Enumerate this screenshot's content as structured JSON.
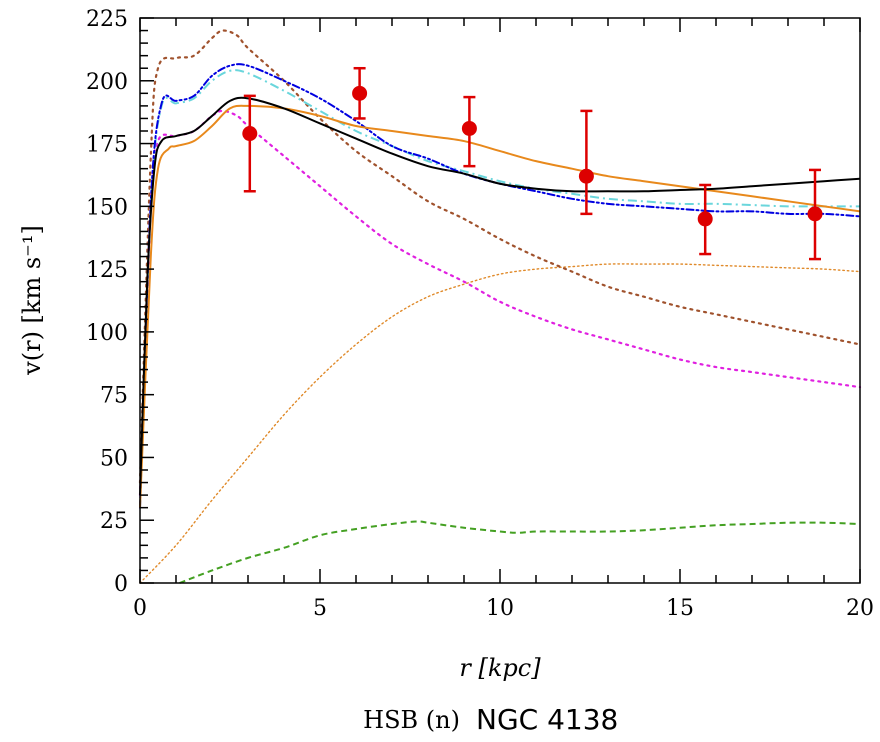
{
  "chart_data": {
    "type": "line",
    "title": "",
    "xlabel": "r [kpc]",
    "ylabel": "v(r) [km s⁻¹]",
    "caption_prefix": "HSB (n)",
    "caption_name": "NGC 4138",
    "xlim": [
      0,
      20
    ],
    "ylim": [
      0,
      225
    ],
    "xticks": [
      0,
      5,
      10,
      15,
      20
    ],
    "yticks": [
      0,
      25,
      50,
      75,
      100,
      125,
      150,
      175,
      200,
      225
    ],
    "grid": false,
    "observations": {
      "color": "#dd0000",
      "points": [
        {
          "r": 3.05,
          "v": 179,
          "lo": 156,
          "hi": 194
        },
        {
          "r": 6.1,
          "v": 195,
          "lo": 185,
          "hi": 205
        },
        {
          "r": 9.15,
          "v": 181,
          "lo": 166,
          "hi": 193.5
        },
        {
          "r": 12.4,
          "v": 162,
          "lo": 147,
          "hi": 188
        },
        {
          "r": 15.7,
          "v": 145,
          "lo": 131,
          "hi": 158.5
        },
        {
          "r": 18.75,
          "v": 147,
          "lo": 129,
          "hi": 164.5
        }
      ]
    },
    "series": [
      {
        "color": "#e08a2a",
        "style": "thin-dotted",
        "points": [
          [
            0,
            0
          ],
          [
            1,
            15
          ],
          [
            2,
            33
          ],
          [
            3,
            50
          ],
          [
            4,
            67
          ],
          [
            5,
            82
          ],
          [
            6,
            95
          ],
          [
            7,
            106
          ],
          [
            8,
            114
          ],
          [
            9,
            119
          ],
          [
            10,
            123
          ],
          [
            11,
            125
          ],
          [
            12,
            126
          ],
          [
            13,
            127
          ],
          [
            14,
            127
          ],
          [
            15,
            127
          ],
          [
            16,
            126.5
          ],
          [
            17,
            126
          ],
          [
            18,
            125.5
          ],
          [
            19,
            125
          ],
          [
            20,
            124
          ]
        ]
      },
      {
        "color": "#44a022",
        "style": "dashed",
        "points": [
          [
            1.1,
            0
          ],
          [
            2,
            5
          ],
          [
            3,
            10
          ],
          [
            4,
            14
          ],
          [
            5,
            19
          ],
          [
            6,
            21.5
          ],
          [
            7,
            23.5
          ],
          [
            7.7,
            24.5
          ],
          [
            8,
            24
          ],
          [
            9,
            22
          ],
          [
            10,
            20.5
          ],
          [
            10.5,
            20
          ],
          [
            11,
            20.5
          ],
          [
            12,
            20.5
          ],
          [
            13,
            20.5
          ],
          [
            14,
            21
          ],
          [
            15,
            22
          ],
          [
            16,
            23
          ],
          [
            17,
            23.5
          ],
          [
            18,
            24
          ],
          [
            19,
            24
          ],
          [
            20,
            23.5
          ]
        ]
      },
      {
        "color": "#a0522d",
        "style": "dotted",
        "points": [
          [
            0,
            40
          ],
          [
            0.3,
            170
          ],
          [
            0.5,
            205
          ],
          [
            1,
            209
          ],
          [
            1.5,
            210
          ],
          [
            2,
            217
          ],
          [
            2.3,
            220
          ],
          [
            2.7,
            218
          ],
          [
            3,
            213
          ],
          [
            4,
            200
          ],
          [
            5,
            185
          ],
          [
            6,
            172
          ],
          [
            7,
            162
          ],
          [
            8,
            152
          ],
          [
            9,
            145
          ],
          [
            10,
            137
          ],
          [
            11,
            130
          ],
          [
            12,
            124
          ],
          [
            13,
            118
          ],
          [
            14,
            114
          ],
          [
            15,
            110
          ],
          [
            16,
            107
          ],
          [
            17,
            104
          ],
          [
            18,
            101
          ],
          [
            19,
            98
          ],
          [
            20,
            95
          ]
        ]
      },
      {
        "color": "#e020e0",
        "style": "dotted",
        "points": [
          [
            0,
            35
          ],
          [
            0.3,
            150
          ],
          [
            0.5,
            176
          ],
          [
            1,
            178
          ],
          [
            1.5,
            180
          ],
          [
            2,
            186
          ],
          [
            2.3,
            188
          ],
          [
            2.7,
            186
          ],
          [
            3,
            182
          ],
          [
            4,
            170
          ],
          [
            5,
            158
          ],
          [
            6,
            146
          ],
          [
            7,
            135
          ],
          [
            8,
            127
          ],
          [
            9,
            120
          ],
          [
            10,
            112
          ],
          [
            11,
            106
          ],
          [
            12,
            101
          ],
          [
            13,
            97
          ],
          [
            14,
            93
          ],
          [
            15,
            89
          ],
          [
            16,
            86
          ],
          [
            17,
            84
          ],
          [
            18,
            82
          ],
          [
            19,
            80
          ],
          [
            20,
            78
          ]
        ]
      },
      {
        "color": "#6ad6dc",
        "style": "dash-dot",
        "points": [
          [
            0,
            30
          ],
          [
            0.3,
            150
          ],
          [
            0.6,
            190
          ],
          [
            1,
            191
          ],
          [
            1.5,
            193
          ],
          [
            2,
            200
          ],
          [
            2.5,
            204
          ],
          [
            3,
            203
          ],
          [
            4,
            196
          ],
          [
            5,
            188
          ],
          [
            6,
            180
          ],
          [
            7,
            174
          ],
          [
            8,
            168
          ],
          [
            9,
            164
          ],
          [
            10,
            160
          ],
          [
            11,
            157
          ],
          [
            12,
            155
          ],
          [
            13,
            153
          ],
          [
            14,
            152
          ],
          [
            15,
            151
          ],
          [
            16,
            151
          ],
          [
            17,
            150.5
          ],
          [
            18,
            150
          ],
          [
            19,
            150
          ],
          [
            20,
            150
          ]
        ]
      },
      {
        "color": "#0000e0",
        "style": "dash-dot-dot",
        "points": [
          [
            0,
            30
          ],
          [
            0.3,
            152
          ],
          [
            0.6,
            191
          ],
          [
            1,
            192
          ],
          [
            1.5,
            194
          ],
          [
            2,
            202
          ],
          [
            2.5,
            206
          ],
          [
            3,
            206
          ],
          [
            4,
            200
          ],
          [
            5,
            193
          ],
          [
            6,
            184
          ],
          [
            7,
            174
          ],
          [
            8,
            169
          ],
          [
            9,
            163
          ],
          [
            10,
            159
          ],
          [
            11,
            156
          ],
          [
            12,
            153
          ],
          [
            13,
            151
          ],
          [
            14,
            150
          ],
          [
            15,
            149
          ],
          [
            16,
            148
          ],
          [
            17,
            148
          ],
          [
            18,
            147
          ],
          [
            19,
            147
          ],
          [
            20,
            146
          ]
        ]
      },
      {
        "color": "#e8891c",
        "style": "solid",
        "points": [
          [
            0,
            30
          ],
          [
            0.3,
            130
          ],
          [
            0.5,
            165
          ],
          [
            0.8,
            173
          ],
          [
            1,
            174
          ],
          [
            1.5,
            176
          ],
          [
            2,
            182
          ],
          [
            2.5,
            189
          ],
          [
            3,
            190
          ],
          [
            4,
            189
          ],
          [
            5,
            186
          ],
          [
            6,
            182
          ],
          [
            7,
            180
          ],
          [
            8,
            178
          ],
          [
            9,
            176
          ],
          [
            10,
            172
          ],
          [
            11,
            168
          ],
          [
            12,
            165
          ],
          [
            13,
            162
          ],
          [
            14,
            160
          ],
          [
            15,
            158
          ],
          [
            16,
            156
          ],
          [
            17,
            154
          ],
          [
            18,
            152
          ],
          [
            19,
            150
          ],
          [
            20,
            148
          ]
        ]
      },
      {
        "color": "#000000",
        "style": "solid",
        "points": [
          [
            0,
            35
          ],
          [
            0.2,
            120
          ],
          [
            0.4,
            165
          ],
          [
            0.6,
            176
          ],
          [
            1,
            178
          ],
          [
            1.5,
            180
          ],
          [
            2,
            186
          ],
          [
            2.5,
            192
          ],
          [
            3,
            193
          ],
          [
            4,
            189
          ],
          [
            5,
            183
          ],
          [
            6,
            177
          ],
          [
            7,
            171
          ],
          [
            8,
            166
          ],
          [
            9,
            163
          ],
          [
            10,
            159
          ],
          [
            11,
            157
          ],
          [
            12,
            156
          ],
          [
            13,
            156
          ],
          [
            14,
            156
          ],
          [
            15,
            156.5
          ],
          [
            16,
            157
          ],
          [
            17,
            158
          ],
          [
            18,
            159
          ],
          [
            19,
            160
          ],
          [
            20,
            161
          ]
        ]
      }
    ]
  }
}
